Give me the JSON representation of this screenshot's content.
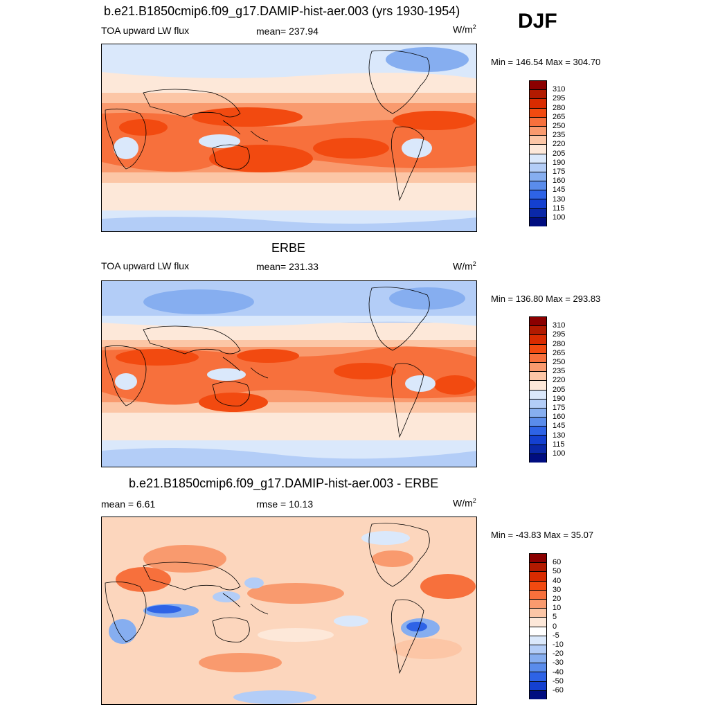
{
  "season": "DJF",
  "units_base": "W/m",
  "units_exp": "2",
  "panels": [
    {
      "title": "b.e21.B1850cmip6.f09_g17.DAMIP-hist-aer.003 (yrs 1930-1954)",
      "left_label": "TOA upward LW flux",
      "center_label": "mean= 237.94",
      "minmax": "Min = 146.54 Max = 304.70"
    },
    {
      "title": "ERBE",
      "left_label": "TOA upward LW flux",
      "center_label": "mean= 231.33",
      "minmax": "Min = 136.80 Max = 293.83"
    },
    {
      "title": "b.e21.B1850cmip6.f09_g17.DAMIP-hist-aer.003 - ERBE",
      "left_label": "mean =   6.61",
      "center_label": "rmse =  10.13",
      "minmax": "Min = -43.83 Max =  35.07"
    }
  ],
  "colorbars": {
    "abs": {
      "ticks": [
        "310",
        "295",
        "280",
        "265",
        "250",
        "235",
        "220",
        "205",
        "190",
        "175",
        "160",
        "145",
        "130",
        "115",
        "100"
      ],
      "colors": [
        "#8b0000",
        "#b21a00",
        "#d92b00",
        "#f24a10",
        "#f7703c",
        "#f99a6e",
        "#fcc6a6",
        "#fde8d9",
        "#dae8fb",
        "#b3cdf7",
        "#86aef0",
        "#5a8ceb",
        "#2e63e6",
        "#1440d0",
        "#0a28a8",
        "#000d80"
      ]
    },
    "diff": {
      "ticks": [
        "60",
        "50",
        "40",
        "30",
        "20",
        "10",
        "5",
        "0",
        "-5",
        "-10",
        "-20",
        "-30",
        "-40",
        "-50",
        "-60"
      ],
      "colors": [
        "#8b0000",
        "#b21a00",
        "#d92b00",
        "#f24a10",
        "#f7703c",
        "#f99a6e",
        "#fcc6a6",
        "#fde8d9",
        "#ffffff",
        "#dae8fb",
        "#b3cdf7",
        "#86aef0",
        "#5a8ceb",
        "#2e63e6",
        "#1440d0",
        "#000d80"
      ]
    }
  }
}
